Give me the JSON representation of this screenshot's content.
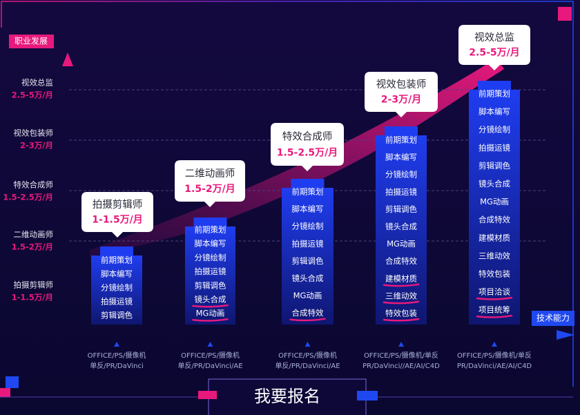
{
  "y_axis_label": "职业发展",
  "x_axis_label": "技术能力",
  "levels": [
    {
      "title": "拍摄剪辑师",
      "salary": "1-1.5万/月"
    },
    {
      "title": "二维动画师",
      "salary": "1.5-2万/月"
    },
    {
      "title": "特效合成师",
      "salary": "1.5-2.5万/月"
    },
    {
      "title": "视效包装师",
      "salary": "2-3万/月"
    },
    {
      "title": "视效总监",
      "salary": "2.5-5万/月"
    }
  ],
  "columns": [
    {
      "title": "拍摄剪辑师",
      "salary": "1-1.5万/月",
      "skills": [
        "前期策划",
        "脚本编写",
        "分镜绘制",
        "拍摄运镜",
        "剪辑调色"
      ],
      "tools": [
        "OFFICE/PS/摄像机",
        "单反/PR/DaVinci"
      ]
    },
    {
      "title": "二维动画师",
      "salary": "1.5-2万/月",
      "skills": [
        "前期策划",
        "脚本编写",
        "分镜绘制",
        "拍摄运镜",
        "剪辑调色",
        "镜头合成",
        "MG动画"
      ],
      "tools": [
        "OFFICE/PS/摄像机",
        "单反/PR/DaVinci/AE"
      ]
    },
    {
      "title": "特效合成师",
      "salary": "1.5-2.5万/月",
      "skills": [
        "前期策划",
        "脚本编写",
        "分镜绘制",
        "拍摄运镜",
        "剪辑调色",
        "镜头合成",
        "MG动画",
        "合成特效"
      ],
      "tools": [
        "OFFICE/PS/摄像机",
        "单反/PR/DaVinci/AE"
      ]
    },
    {
      "title": "视效包装师",
      "salary": "2-3万/月",
      "skills": [
        "前期策划",
        "脚本编写",
        "分镜绘制",
        "拍摄运镜",
        "剪辑调色",
        "镜头合成",
        "MG动画",
        "合成特效",
        "建模材质",
        "三维动效",
        "特效包装"
      ],
      "tools": [
        "OFFICE/PS/摄像机/单反",
        "PR/DaVinci//AE/AI/C4D"
      ]
    },
    {
      "title": "视效总监",
      "salary": "2.5-5万/月",
      "skills": [
        "前期策划",
        "脚本编写",
        "分镜绘制",
        "拍摄运镜",
        "剪辑调色",
        "镜头合成",
        "MG动画",
        "合成特效",
        "建模材质",
        "三维动效",
        "特效包装",
        "项目洽谈",
        "项目统筹"
      ],
      "tools": [
        "OFFICE/PS/摄像机/单反",
        "PR/DaVinci/AE/AI/C4D"
      ]
    }
  ],
  "button": "我要报名"
}
